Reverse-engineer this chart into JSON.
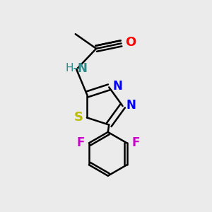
{
  "background_color": "#ebebeb",
  "bond_color": "#000000",
  "atom_colors": {
    "O": "#ff0000",
    "N": "#0000ff",
    "N_amide": "#2e8b8b",
    "S": "#bbbb00",
    "F": "#cc00cc",
    "H": "#2e8b8b"
  }
}
